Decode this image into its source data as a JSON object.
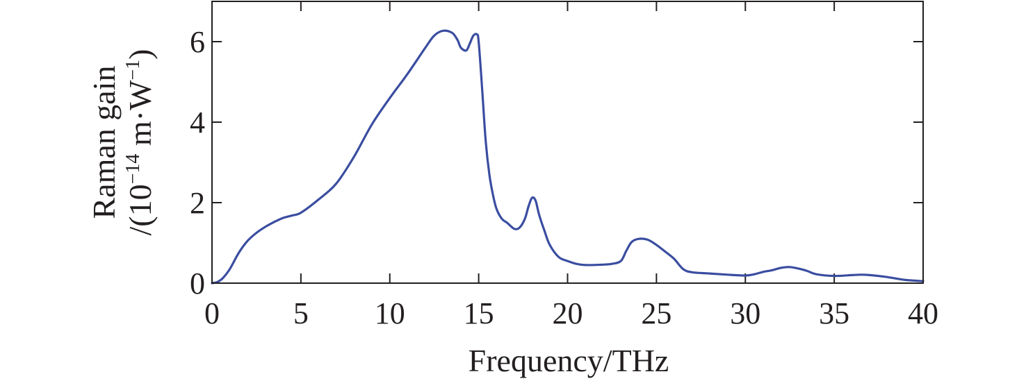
{
  "chart_data": {
    "type": "line",
    "xlabel": "Frequency/THz",
    "ylabel_line1": "Raman gain",
    "ylabel_line2": {
      "open": "/(10",
      "exp1": "−14",
      "mid": " m·W",
      "exp2": "−1",
      "close": ")"
    },
    "xlim": [
      0,
      40
    ],
    "ylim": [
      0,
      7
    ],
    "x_ticks": [
      "0",
      "5",
      "10",
      "15",
      "20",
      "25",
      "30",
      "35",
      "40"
    ],
    "y_ticks": [
      "0",
      "2",
      "4",
      "6"
    ],
    "grid": false,
    "line_color": "#3a4da0",
    "series": [
      {
        "x": [
          0,
          0.3,
          0.6,
          1.0,
          1.5,
          2.0,
          2.5,
          3.0,
          3.5,
          4.0,
          4.5,
          5.0,
          6.0,
          7.0,
          8.0,
          9.0,
          10.0,
          11.0,
          12.0,
          12.5,
          13.0,
          13.5,
          13.8,
          14.0,
          14.3,
          14.5,
          14.7,
          14.9,
          15.0,
          15.2,
          15.4,
          15.6,
          15.8,
          16.0,
          16.3,
          16.6,
          17.0,
          17.3,
          17.6,
          17.8,
          18.0,
          18.2,
          18.4,
          18.7,
          19.0,
          19.5,
          20.0,
          20.5,
          21.0,
          22.0,
          22.5,
          23.0,
          23.3,
          23.6,
          24.0,
          24.5,
          25.0,
          25.5,
          26.0,
          26.5,
          27.0,
          28.0,
          29.0,
          30.0,
          30.5,
          31.0,
          31.5,
          32.0,
          32.5,
          33.0,
          33.5,
          34.0,
          35.0,
          36.0,
          36.5,
          37.0,
          38.0,
          39.0,
          40.0
        ],
        "y": [
          0.0,
          0.03,
          0.12,
          0.35,
          0.75,
          1.05,
          1.25,
          1.4,
          1.52,
          1.62,
          1.68,
          1.75,
          2.08,
          2.48,
          3.15,
          3.95,
          4.6,
          5.2,
          5.85,
          6.15,
          6.27,
          6.22,
          6.05,
          5.85,
          5.78,
          5.95,
          6.15,
          6.18,
          6.0,
          4.8,
          3.5,
          2.7,
          2.2,
          1.85,
          1.6,
          1.5,
          1.35,
          1.38,
          1.6,
          1.9,
          2.12,
          2.05,
          1.7,
          1.3,
          0.95,
          0.65,
          0.55,
          0.48,
          0.45,
          0.46,
          0.48,
          0.55,
          0.8,
          1.02,
          1.1,
          1.08,
          0.95,
          0.78,
          0.6,
          0.35,
          0.27,
          0.24,
          0.21,
          0.19,
          0.22,
          0.28,
          0.32,
          0.38,
          0.4,
          0.36,
          0.3,
          0.22,
          0.18,
          0.2,
          0.21,
          0.2,
          0.15,
          0.08,
          0.05
        ]
      }
    ]
  }
}
